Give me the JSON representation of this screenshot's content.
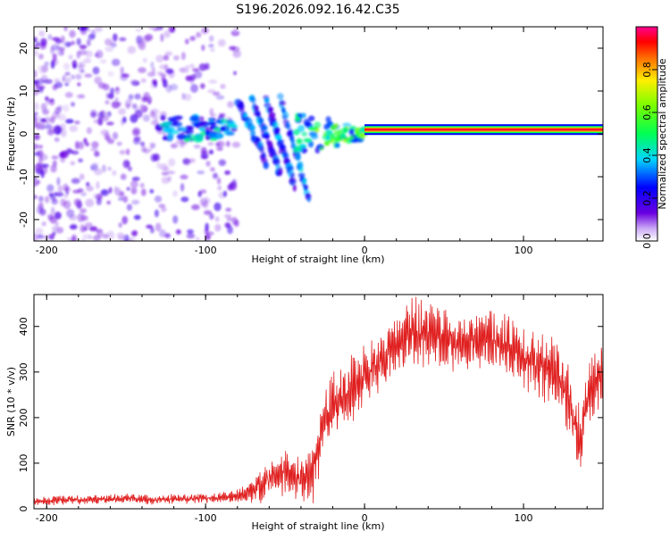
{
  "title": "S196.2026.092.16.42.C35",
  "colors": {
    "snr_line": "#e02020",
    "axis": "#000000",
    "background": "#ffffff"
  },
  "chart_data": [
    {
      "type": "heatmap",
      "name": "spectrogram",
      "xlabel": "Height of straight line (km)",
      "ylabel": "Frequency (Hz)",
      "xlim": [
        -208,
        150
      ],
      "ylim": [
        -25,
        25
      ],
      "xticks": [
        -200,
        -100,
        0,
        100
      ],
      "xtick_labels": [
        "-200",
        "-100",
        "0",
        "100"
      ],
      "yticks": [
        -20,
        -10,
        0,
        10,
        20
      ],
      "ytick_labels": [
        "-20",
        "-10",
        "0",
        "10",
        "20"
      ],
      "features": [
        {
          "description": "scattered low-amplitude noise",
          "x_range": [
            -208,
            -80
          ],
          "y_range": [
            -25,
            25
          ],
          "amplitude": 0.1
        },
        {
          "description": "broken signal band",
          "x_range": [
            -130,
            -80
          ],
          "y_center": 1,
          "amplitude": 0.25
        },
        {
          "description": "descending curved arms",
          "x_range": [
            -80,
            -40
          ],
          "y_range": [
            -16,
            8
          ],
          "amplitude": 0.2
        },
        {
          "description": "rising signal band",
          "x_range": [
            -45,
            0
          ],
          "y_center": 0,
          "amplitude": 0.4
        },
        {
          "description": "strong carrier line",
          "x_range": [
            0,
            150
          ],
          "y_center": 1,
          "amplitude": 0.95
        }
      ],
      "colorbar": {
        "label": "Normalized spectral amplitude",
        "range": [
          0,
          1
        ],
        "ticks": [
          0,
          0.2,
          0.4,
          0.6,
          0.8
        ],
        "tick_labels": [
          "0.0",
          "0.2",
          "0.4",
          "0.6",
          "0.8"
        ]
      }
    },
    {
      "type": "line",
      "name": "snr",
      "xlabel": "Height of straight line (km)",
      "ylabel": "SNR (10 * v/v)",
      "xlim": [
        -208,
        150
      ],
      "ylim": [
        0,
        470
      ],
      "xticks": [
        -200,
        -100,
        0,
        100
      ],
      "xtick_labels": [
        "-200",
        "-100",
        "0",
        "100"
      ],
      "yticks": [
        0,
        100,
        200,
        300,
        400
      ],
      "ytick_labels": [
        "0",
        "100",
        "200",
        "300",
        "400"
      ],
      "series": [
        {
          "name": "SNR",
          "x": [
            -208,
            -190,
            -170,
            -150,
            -130,
            -110,
            -90,
            -80,
            -70,
            -62,
            -55,
            -48,
            -40,
            -32,
            -25,
            -18,
            -10,
            -5,
            0,
            10,
            20,
            30,
            40,
            50,
            60,
            70,
            80,
            90,
            100,
            110,
            120,
            128,
            135,
            142,
            150
          ],
          "values": [
            15,
            20,
            20,
            22,
            20,
            22,
            25,
            30,
            40,
            60,
            80,
            80,
            70,
            90,
            200,
            230,
            250,
            270,
            300,
            320,
            360,
            390,
            380,
            370,
            360,
            370,
            370,
            360,
            330,
            310,
            300,
            240,
            150,
            260,
            300
          ],
          "ripple": [
            10,
            12,
            12,
            12,
            12,
            12,
            12,
            15,
            30,
            50,
            50,
            60,
            60,
            80,
            80,
            90,
            90,
            80,
            60,
            70,
            70,
            80,
            80,
            80,
            70,
            70,
            70,
            70,
            80,
            80,
            80,
            90,
            80,
            80,
            70
          ]
        }
      ]
    }
  ]
}
